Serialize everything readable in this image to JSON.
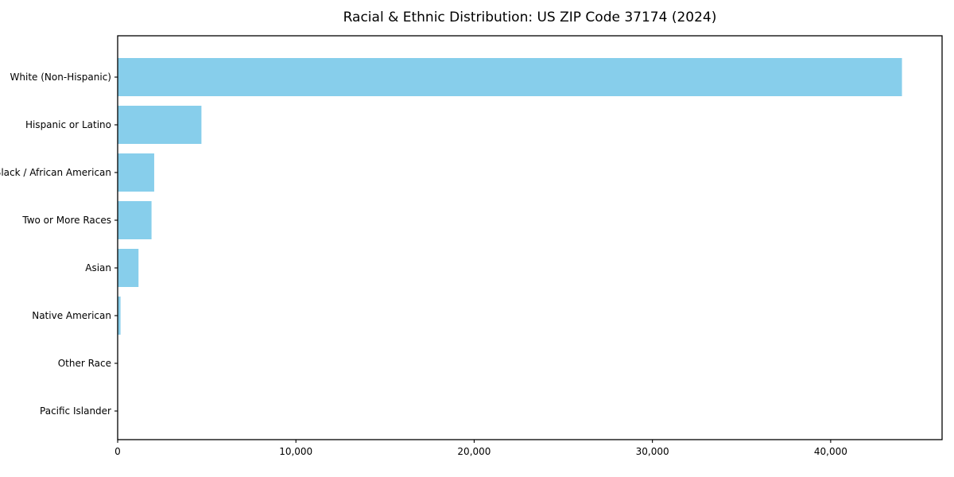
{
  "page": {
    "background": "#ffffff"
  },
  "chart_data": {
    "type": "bar",
    "orientation": "horizontal",
    "title": "Racial & Ethnic Distribution: US ZIP Code 37174 (2024)",
    "categories": [
      "White (Non-Hispanic)",
      "Hispanic or Latino",
      "Black / African American",
      "Two or More Races",
      "Asian",
      "Native American",
      "Other Race",
      "Pacific Islander"
    ],
    "values": [
      44000,
      4700,
      2050,
      1900,
      1170,
      160,
      0,
      0
    ],
    "xlabel": "",
    "ylabel": "",
    "xlim": [
      0,
      46250
    ],
    "xticks": [
      0,
      10000,
      20000,
      30000,
      40000
    ],
    "xtick_labels": [
      "0",
      "10,000",
      "20,000",
      "30,000",
      "40,000"
    ],
    "bar_color": "#87CEEB",
    "axis_color": "#000000",
    "text_color": "#000000",
    "grid": false,
    "legend_position": "none"
  }
}
